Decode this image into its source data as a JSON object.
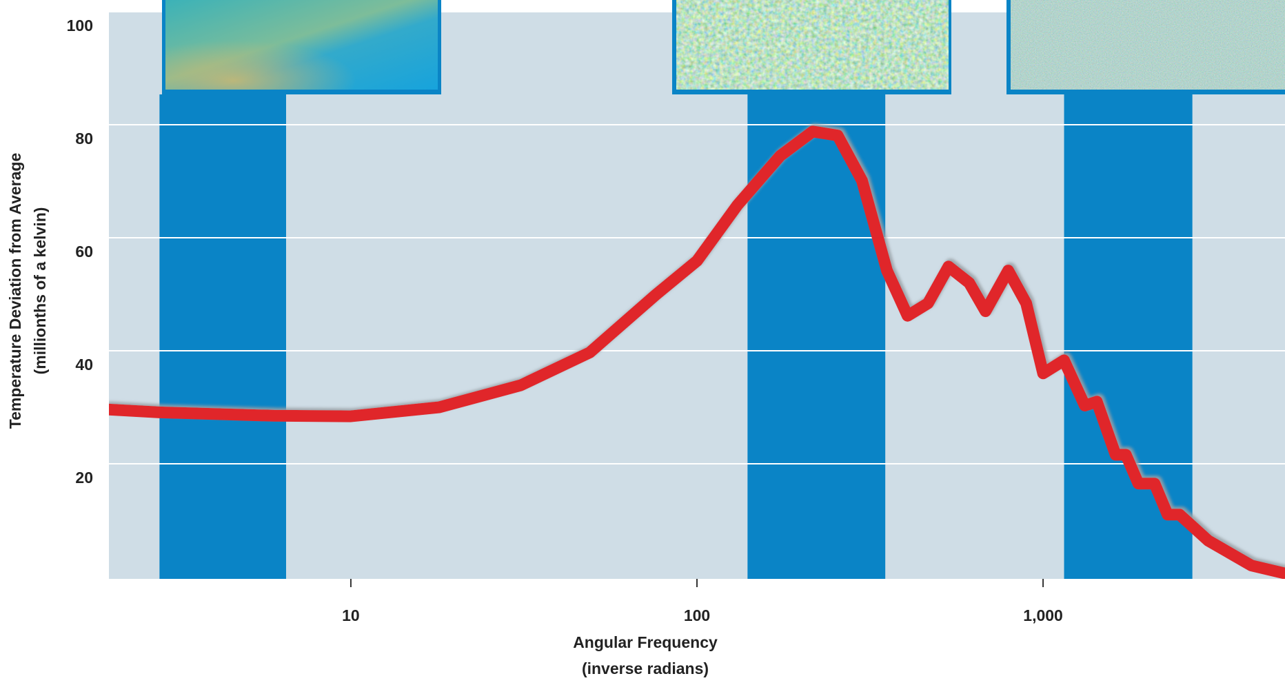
{
  "chart_data": {
    "type": "line",
    "ylabel": [
      "Temperature Deviation from Average",
      "(millionths of a kelvin)"
    ],
    "xlabel": [
      "Angular Frequency",
      "(inverse radians)"
    ],
    "x": [
      2,
      2.8,
      6,
      10,
      18,
      31,
      49,
      76,
      100,
      131,
      174,
      216,
      255,
      300,
      354,
      406,
      465,
      533,
      612,
      682,
      793,
      894,
      1000,
      1150,
      1320,
      1430,
      1620,
      1735,
      1885,
      2100,
      2290,
      2480,
      3000,
      4000,
      5000
    ],
    "values": [
      29.6,
      29.1,
      28.5,
      28.4,
      30,
      33.9,
      39.7,
      49.9,
      55.9,
      65.8,
      74.5,
      78.8,
      78.1,
      70.1,
      54.2,
      46.2,
      48.4,
      54.9,
      52,
      47,
      54.2,
      48.4,
      36,
      38.3,
      30.3,
      31,
      21.6,
      21.6,
      16.5,
      16.5,
      11,
      11,
      6.4,
      2,
      0.6
    ],
    "color": "#e0262b",
    "bands": [
      [
        2.8,
        6.5
      ],
      [
        140,
        350
      ],
      [
        1150,
        2700
      ]
    ],
    "band_color": "#0a84c6",
    "xscale": "log",
    "xlim": [
      2,
      5000
    ],
    "xticks": [
      10,
      100,
      {
        "value": 1000,
        "label": "1,000"
      }
    ],
    "ylim": [
      0,
      100
    ],
    "yticks": [
      20,
      40,
      60,
      80,
      100
    ],
    "grid": true
  }
}
